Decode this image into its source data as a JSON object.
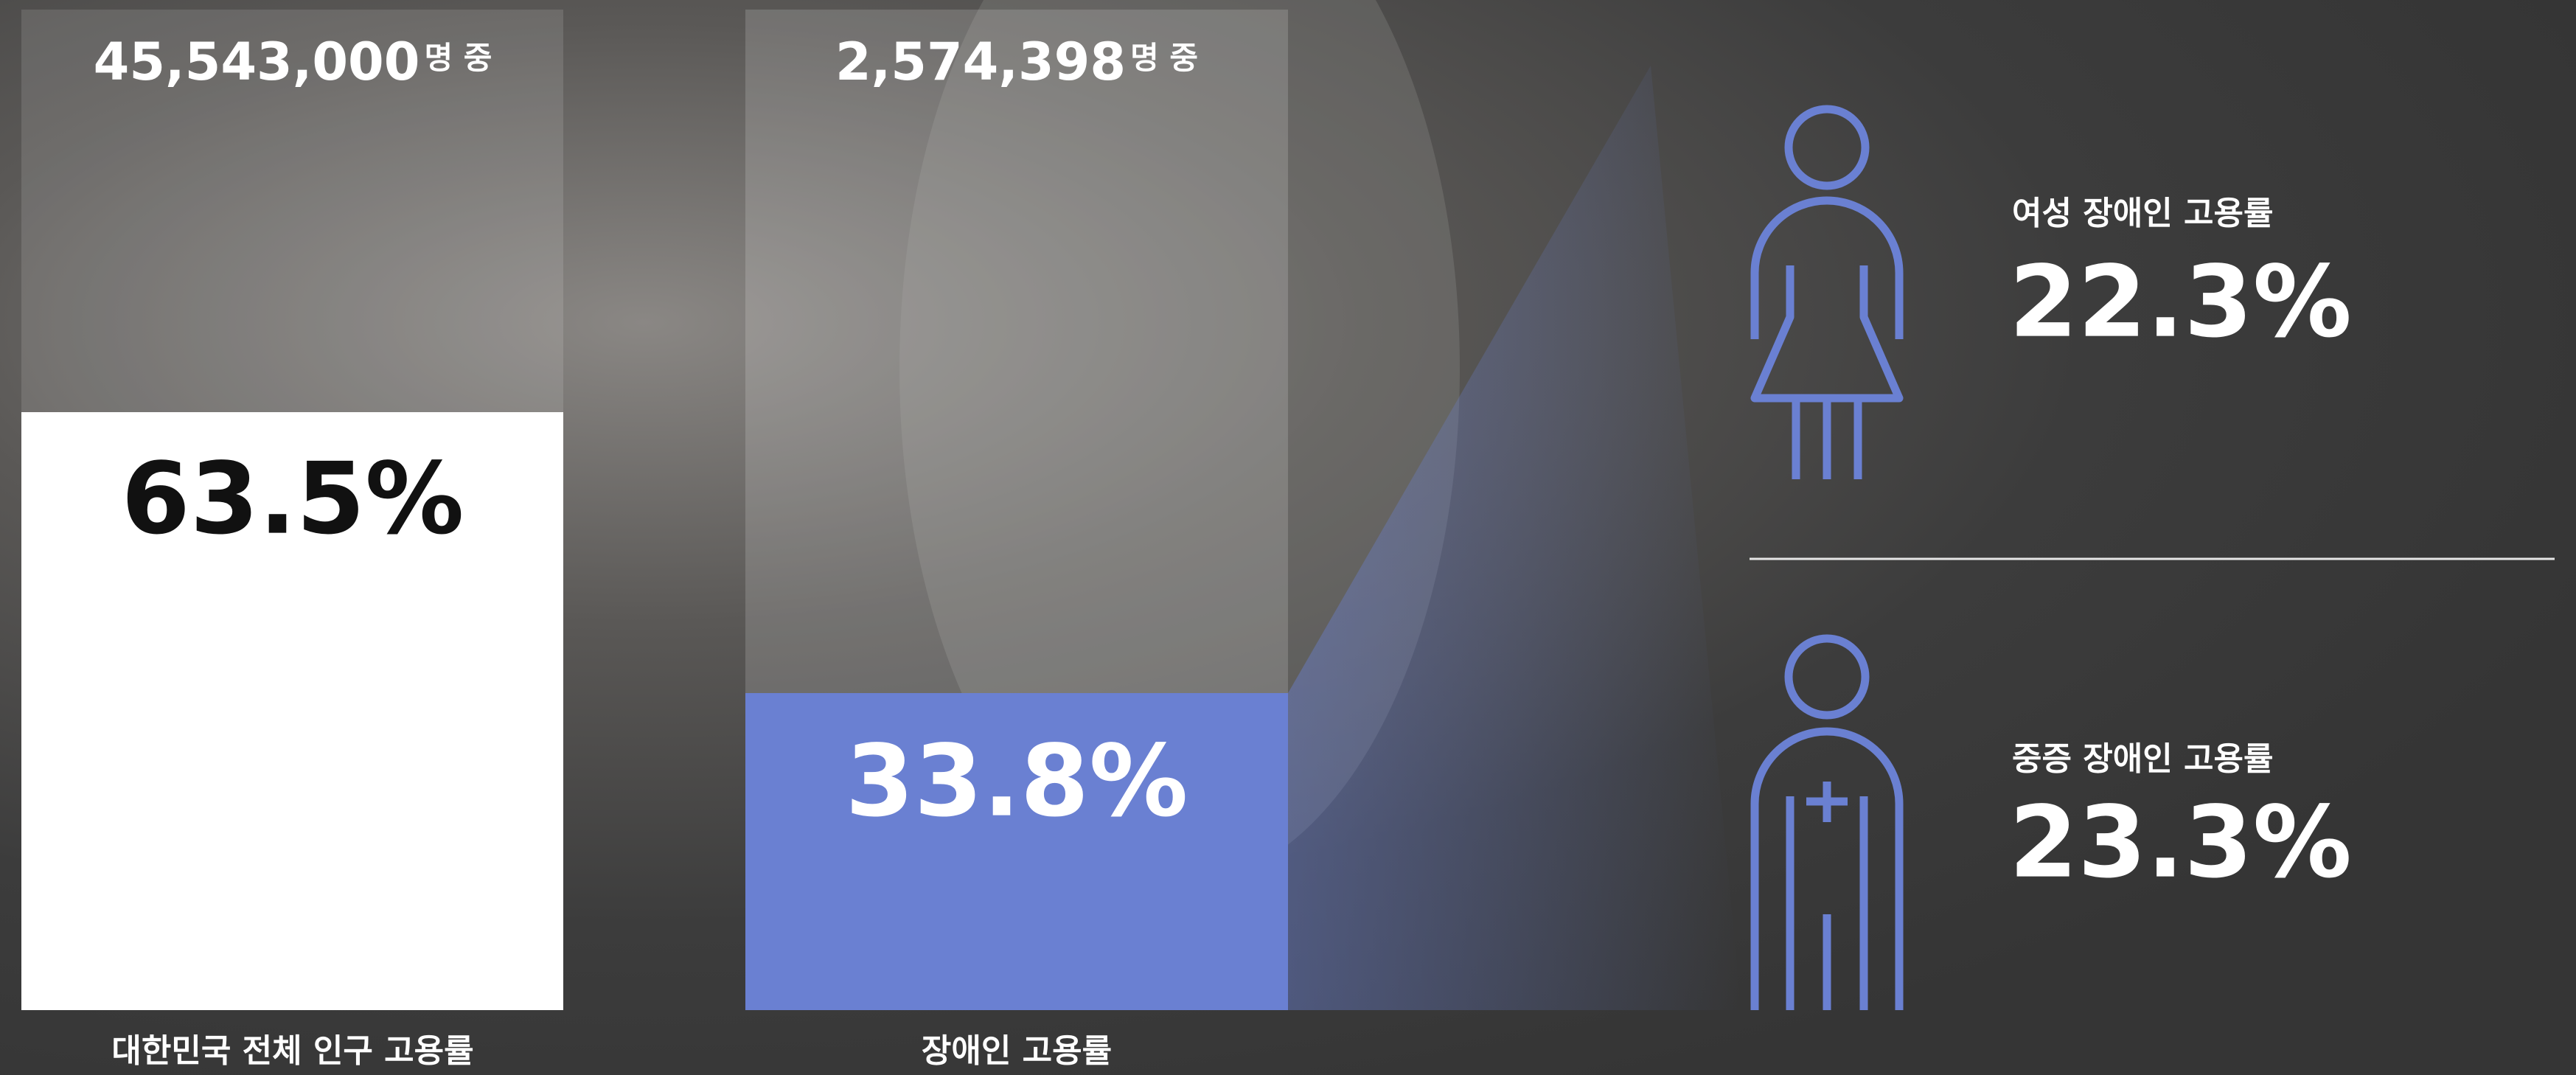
{
  "columns": [
    {
      "total": "45,543,000",
      "unit": "명 중",
      "rate": "63.5%",
      "label": "대한민국 전체 인구 고용률"
    },
    {
      "total": "2,574,398",
      "unit": "명 중",
      "rate": "33.8%",
      "label": "장애인 고용률"
    }
  ],
  "stats": [
    {
      "label": "여성 장애인 고용률",
      "rate": "22.3%"
    },
    {
      "label": "중증 장애인 고용률",
      "rate": "23.3%"
    }
  ]
}
